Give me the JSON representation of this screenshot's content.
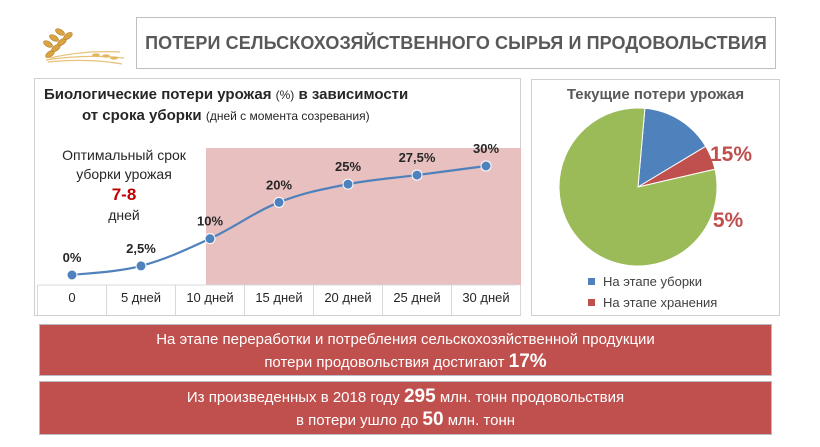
{
  "header": {
    "title": "ПОТЕРИ СЕЛЬСКОХОЗЯЙСТВЕННОГО СЫРЬЯ И ПРОДОВОЛЬСТВИЯ"
  },
  "line_chart_text": {
    "title_line1_bold": "Биологические  потери урожая",
    "title_line1_unit": "(%)",
    "title_line1_tail": "в зависимости",
    "title_line2_bold": "от срока уборки",
    "title_line2_note": "(дней с момента созревания)",
    "optimal_line1": "Оптимальный срок",
    "optimal_line2": "уборки урожая",
    "optimal_days": "7-8",
    "optimal_line3": "дней"
  },
  "pie_text": {
    "title": "Текущие потери урожая"
  },
  "bands": {
    "processing_line1": "На этапе переработки и потребления сельскохозяйственной продукции",
    "processing_line2_pre": "потери продовольствия достигают",
    "processing_value": "17%",
    "production_pre": "Из произведенных в 2018 году",
    "production_value": "295",
    "production_mid": "млн. тонн продовольствия",
    "production_line2_pre": "в потери ушло до",
    "loss_value": "50",
    "loss_unit": "млн. тонн"
  },
  "colors": {
    "line": "#4f81bd",
    "shade": "#e6b9b8",
    "pie_green": "#9bbb59",
    "pie_blue": "#4f81bd",
    "pie_red": "#c0504d",
    "accent_red": "#c0504d"
  },
  "chart_data": [
    {
      "type": "line",
      "title": "Биологические потери урожая (%) в зависимости от срока уборки (дней с момента созревания)",
      "categories": [
        "0",
        "5 дней",
        "10 дней",
        "15 дней",
        "20 дней",
        "25 дней",
        "30 дней"
      ],
      "values": [
        0,
        2.5,
        10,
        20,
        25,
        27.5,
        30
      ],
      "data_labels": [
        "0%",
        "2,5%",
        "10%",
        "20%",
        "25%",
        "27,5%",
        "30%"
      ],
      "ylim": [
        0,
        30
      ],
      "shaded_region_from_category": "10 дней",
      "annotation": "Оптимальный срок уборки урожая 7-8 дней"
    },
    {
      "type": "pie",
      "title": "Текущие потери урожая",
      "slices": [
        {
          "name": "На этапе уборки",
          "value": 15,
          "label": "15%",
          "color": "#4f81bd"
        },
        {
          "name": "На этапе хранения",
          "value": 5,
          "label": "5%",
          "color": "#c0504d"
        },
        {
          "name": "",
          "value": 80,
          "label": "",
          "color": "#9bbb59"
        }
      ],
      "legend": "bottom"
    }
  ]
}
